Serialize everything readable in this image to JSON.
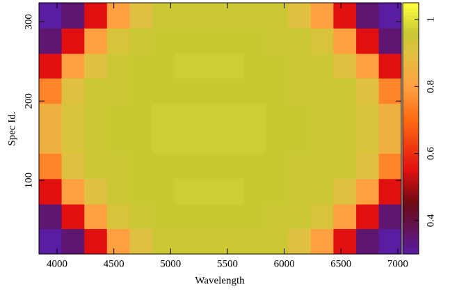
{
  "chart_data": {
    "type": "heatmap",
    "xlabel": "Wavelength",
    "ylabel": "Spec Id.",
    "x": [
      3941,
      4140,
      4340,
      4539,
      4739,
      4938,
      5138,
      5337,
      5536,
      5736,
      5935,
      6135,
      6334,
      6533,
      6733,
      6932
    ],
    "y": [
      23,
      55,
      86,
      118,
      150,
      181,
      213,
      245,
      276,
      308
    ],
    "z": [
      [
        0.3,
        0.35,
        0.55,
        0.8,
        0.9,
        0.95,
        0.95,
        0.95,
        0.95,
        0.95,
        0.95,
        0.9,
        0.8,
        0.55,
        0.35,
        0.3
      ],
      [
        0.35,
        0.55,
        0.8,
        0.92,
        0.95,
        0.96,
        0.96,
        0.96,
        0.96,
        0.96,
        0.95,
        0.95,
        0.92,
        0.8,
        0.55,
        0.35
      ],
      [
        0.55,
        0.8,
        0.9,
        0.95,
        0.96,
        0.96,
        0.97,
        0.97,
        0.97,
        0.96,
        0.96,
        0.95,
        0.95,
        0.9,
        0.8,
        0.55
      ],
      [
        0.75,
        0.9,
        0.95,
        0.95,
        0.96,
        0.96,
        0.96,
        0.96,
        0.96,
        0.96,
        0.96,
        0.95,
        0.95,
        0.95,
        0.9,
        0.75
      ],
      [
        0.85,
        0.92,
        0.95,
        0.96,
        0.96,
        0.97,
        0.97,
        0.97,
        0.97,
        0.97,
        0.96,
        0.96,
        0.95,
        0.95,
        0.92,
        0.85
      ],
      [
        0.85,
        0.92,
        0.95,
        0.96,
        0.96,
        0.97,
        0.97,
        0.97,
        0.97,
        0.97,
        0.96,
        0.96,
        0.95,
        0.95,
        0.92,
        0.85
      ],
      [
        0.75,
        0.9,
        0.95,
        0.95,
        0.96,
        0.96,
        0.96,
        0.96,
        0.96,
        0.96,
        0.96,
        0.95,
        0.95,
        0.95,
        0.9,
        0.75
      ],
      [
        0.55,
        0.8,
        0.9,
        0.95,
        0.96,
        0.96,
        0.97,
        0.97,
        0.97,
        0.96,
        0.96,
        0.95,
        0.95,
        0.9,
        0.8,
        0.55
      ],
      [
        0.35,
        0.55,
        0.8,
        0.92,
        0.95,
        0.96,
        0.96,
        0.96,
        0.96,
        0.96,
        0.95,
        0.95,
        0.92,
        0.8,
        0.55,
        0.35
      ],
      [
        0.3,
        0.35,
        0.55,
        0.8,
        0.9,
        0.95,
        0.95,
        0.95,
        0.95,
        0.95,
        0.95,
        0.9,
        0.8,
        0.55,
        0.35,
        0.3
      ]
    ],
    "xlim": [
      3841,
      7031
    ],
    "ylim": [
      7,
      324
    ],
    "xticks": [
      4000,
      4500,
      5000,
      5500,
      6000,
      6500,
      7000
    ],
    "yticks": [
      100,
      200,
      300
    ],
    "zlim": [
      0.3,
      1.05
    ],
    "zticks": [
      0.4,
      0.6,
      0.8,
      1
    ],
    "colorscale": [
      [
        0.3,
        "#5a1ca0"
      ],
      [
        0.45,
        "#6a0a14"
      ],
      [
        0.55,
        "#e01010"
      ],
      [
        0.7,
        "#ff6a10"
      ],
      [
        0.8,
        "#ffa040"
      ],
      [
        0.9,
        "#e0c040"
      ],
      [
        0.96,
        "#c8c832"
      ],
      [
        1.05,
        "#ffff40"
      ]
    ]
  }
}
